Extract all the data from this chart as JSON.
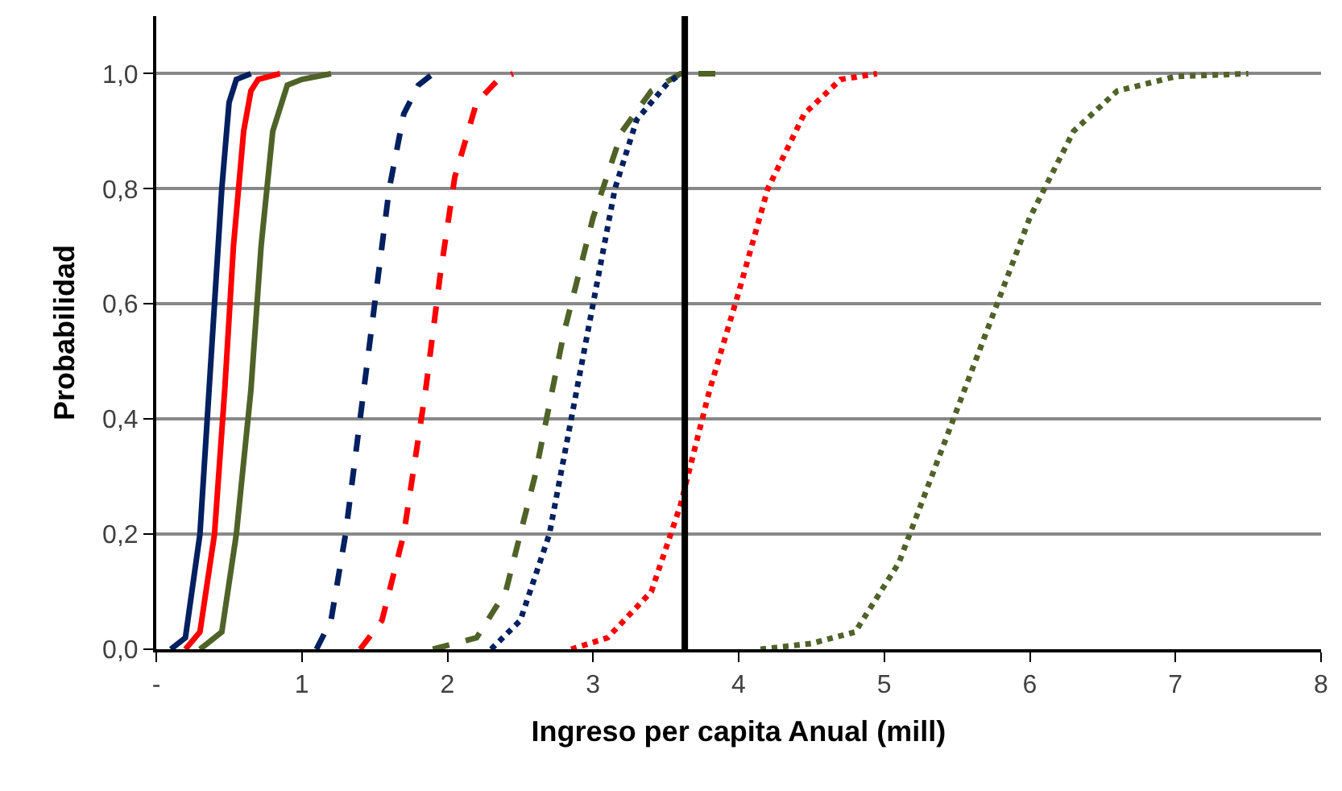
{
  "chart_data": {
    "type": "line",
    "xlabel": "Ingreso per capita Anual (mill)",
    "ylabel": "Probabilidad",
    "xlim": [
      0,
      8
    ],
    "xticks": [
      {
        "value": 0,
        "label": "-"
      },
      1,
      2,
      3,
      4,
      5,
      6,
      7,
      8
    ],
    "ylim": [
      0,
      1.1
    ],
    "yticks": [
      {
        "value": 0,
        "label": "0,0"
      },
      {
        "value": 0.2,
        "label": "0,2"
      },
      {
        "value": 0.4,
        "label": "0,4"
      },
      {
        "value": 0.6,
        "label": "0,6"
      },
      {
        "value": 0.8,
        "label": "0,8"
      },
      {
        "value": 1,
        "label": "1,0"
      }
    ],
    "grid": "y",
    "marker": "none",
    "ref_lines": [
      {
        "axis": "x",
        "value": 3.63,
        "color": "#000000",
        "line_style": "solid"
      }
    ],
    "series": [
      {
        "color": "#002060",
        "line_style": "solid",
        "x": [
          0.1,
          0.2,
          0.3,
          0.35,
          0.4,
          0.45,
          0.5,
          0.55,
          0.65
        ],
        "values": [
          0,
          0.02,
          0.2,
          0.4,
          0.6,
          0.8,
          0.95,
          0.99,
          1
        ]
      },
      {
        "color": "#ff0000",
        "line_style": "solid",
        "x": [
          0.2,
          0.3,
          0.4,
          0.47,
          0.53,
          0.6,
          0.65,
          0.7,
          0.85
        ],
        "values": [
          0,
          0.03,
          0.2,
          0.45,
          0.7,
          0.9,
          0.97,
          0.99,
          1
        ]
      },
      {
        "color": "#4f6228",
        "line_style": "solid",
        "x": [
          0.3,
          0.45,
          0.55,
          0.65,
          0.72,
          0.8,
          0.9,
          1.0,
          1.2
        ],
        "values": [
          0,
          0.03,
          0.2,
          0.45,
          0.7,
          0.9,
          0.98,
          0.99,
          1
        ]
      },
      {
        "color": "#002060",
        "line_style": "dashed",
        "x": [
          1.1,
          1.2,
          1.3,
          1.4,
          1.5,
          1.6,
          1.7,
          1.8,
          1.9
        ],
        "values": [
          0,
          0.05,
          0.2,
          0.4,
          0.6,
          0.8,
          0.93,
          0.98,
          1
        ]
      },
      {
        "color": "#ff0000",
        "line_style": "dashed",
        "x": [
          1.4,
          1.55,
          1.7,
          1.85,
          1.95,
          2.05,
          2.2,
          2.35,
          2.45
        ],
        "values": [
          0,
          0.05,
          0.2,
          0.45,
          0.65,
          0.82,
          0.95,
          0.99,
          1
        ]
      },
      {
        "color": "#4f6228",
        "line_style": "dashed",
        "x": [
          1.9,
          2.2,
          2.4,
          2.6,
          2.8,
          3.0,
          3.2,
          3.4,
          3.6,
          3.85
        ],
        "values": [
          0,
          0.02,
          0.1,
          0.3,
          0.55,
          0.75,
          0.9,
          0.97,
          1,
          1
        ]
      },
      {
        "color": "#002060",
        "line_style": "dotted",
        "x": [
          2.3,
          2.5,
          2.7,
          2.85,
          3.0,
          3.15,
          3.3,
          3.5,
          3.6
        ],
        "values": [
          0,
          0.05,
          0.2,
          0.4,
          0.6,
          0.8,
          0.92,
          0.98,
          1
        ]
      },
      {
        "color": "#ff0000",
        "line_style": "dotted",
        "x": [
          2.85,
          3.1,
          3.4,
          3.6,
          3.8,
          4.0,
          4.2,
          4.45,
          4.7,
          4.95
        ],
        "values": [
          0,
          0.02,
          0.1,
          0.25,
          0.45,
          0.62,
          0.8,
          0.93,
          0.99,
          1
        ]
      },
      {
        "color": "#4f6228",
        "line_style": "dotted",
        "x": [
          4.15,
          4.5,
          4.8,
          5.1,
          5.4,
          5.7,
          6.0,
          6.3,
          6.6,
          7.0,
          7.5
        ],
        "values": [
          0,
          0.01,
          0.03,
          0.15,
          0.35,
          0.55,
          0.75,
          0.9,
          0.97,
          0.995,
          1
        ]
      }
    ]
  }
}
